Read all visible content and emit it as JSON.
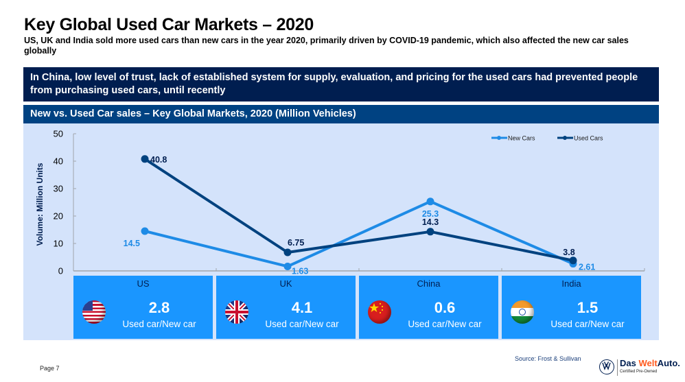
{
  "header": {
    "title": "Key Global Used Car Markets – 2020",
    "subtitle": "US, UK and India sold more used cars than new cars in the year 2020, primarily driven by COVID-19 pandemic, which also affected the new car sales globally"
  },
  "callout": {
    "text": "In China, low level of trust, lack of established system for supply, evaluation, and pricing for the used cars had prevented people from purchasing used cars, until recently"
  },
  "chart_header": {
    "title": "New vs. Used Car sales – Key Global Markets, 2020 (Million Vehicles)"
  },
  "colors": {
    "new_cars": "#1e8be6",
    "used_cars": "#00427f",
    "callout_bg": "#001e50",
    "header_bg": "#004282",
    "panel_bg": "#d4e3fb",
    "card_bg": "#1a96ff"
  },
  "chart_data": {
    "type": "line",
    "title": "New vs. Used Car sales – Key Global Markets, 2020 (Million Vehicles)",
    "xlabel": "",
    "ylabel": "Volume: Million Units",
    "ylim": [
      0,
      50
    ],
    "yticks": [
      "0",
      "10",
      "20",
      "30",
      "40",
      "50"
    ],
    "ytick_values": [
      0,
      10,
      20,
      30,
      40,
      50
    ],
    "categories": [
      "US",
      "UK",
      "China",
      "India"
    ],
    "grid": false,
    "legend": "top-right",
    "series": [
      {
        "name": "New Cars",
        "values": [
          14.5,
          1.63,
          25.3,
          2.61
        ],
        "labels": [
          "14.5",
          "1.63",
          "25.3",
          "2.61"
        ]
      },
      {
        "name": "Used Cars",
        "values": [
          40.8,
          6.75,
          14.3,
          3.8
        ],
        "labels": [
          "40.8",
          "6.75",
          "14.3",
          "3.8"
        ]
      }
    ]
  },
  "cards": [
    {
      "country": "US",
      "flag": "us-flag",
      "ratio": "2.8",
      "label": "Used car/New car"
    },
    {
      "country": "UK",
      "flag": "uk-flag",
      "ratio": "4.1",
      "label": "Used car/New car"
    },
    {
      "country": "China",
      "flag": "china-flag",
      "ratio": "0.6",
      "label": "Used car/New car"
    },
    {
      "country": "India",
      "flag": "india-flag",
      "ratio": "1.5",
      "label": "Used car/New car"
    }
  ],
  "footer": {
    "page": "Page 7",
    "source": "Source: Frost & Sullivan",
    "brand_das": "Das ",
    "brand_welt": "Welt",
    "brand_auto": "Auto.",
    "brand_tagline": "Certified Pre-Owned"
  }
}
